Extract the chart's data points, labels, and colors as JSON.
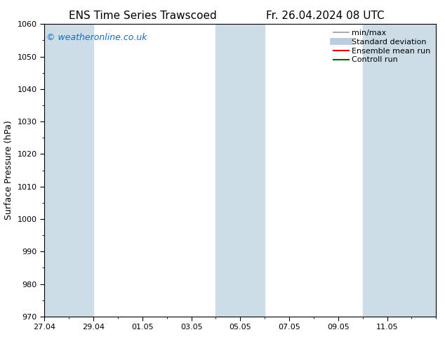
{
  "title_left": "ENS Time Series Trawscoed",
  "title_right": "Fr. 26.04.2024 08 UTC",
  "ylabel": "Surface Pressure (hPa)",
  "ylim": [
    970,
    1060
  ],
  "yticks": [
    970,
    980,
    990,
    1000,
    1010,
    1020,
    1030,
    1040,
    1050,
    1060
  ],
  "xlim": [
    0,
    16
  ],
  "xtick_labels": [
    "27.04",
    "29.04",
    "01.05",
    "03.05",
    "05.05",
    "07.05",
    "09.05",
    "11.05"
  ],
  "xtick_positions": [
    0,
    2,
    4,
    6,
    8,
    10,
    12,
    14
  ],
  "shaded_bands": [
    {
      "x_start": 0,
      "x_end": 2
    },
    {
      "x_start": 7,
      "x_end": 9
    },
    {
      "x_start": 13,
      "x_end": 16
    }
  ],
  "band_color": "#ccdde8",
  "background_color": "#ffffff",
  "watermark_text": "© weatheronline.co.uk",
  "watermark_color": "#1a6abf",
  "legend_items": [
    {
      "label": "min/max",
      "color": "#999999",
      "lw": 1.2
    },
    {
      "label": "Standard deviation",
      "color": "#bbccdd",
      "lw": 7
    },
    {
      "label": "Ensemble mean run",
      "color": "#dd0000",
      "lw": 1.5
    },
    {
      "label": "Controll run",
      "color": "#006600",
      "lw": 1.5
    }
  ],
  "title_fontsize": 11,
  "tick_fontsize": 8,
  "ylabel_fontsize": 9,
  "watermark_fontsize": 9,
  "legend_fontsize": 8
}
